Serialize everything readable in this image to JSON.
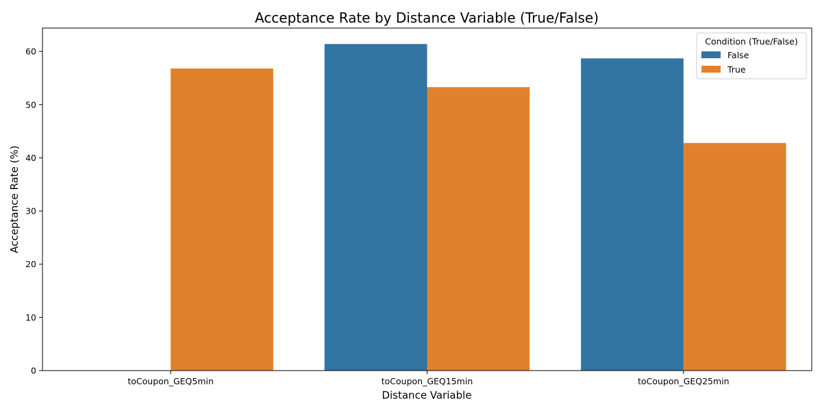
{
  "chart_data": {
    "type": "bar",
    "title": "Acceptance Rate by Distance Variable (True/False)",
    "xlabel": "Distance Variable",
    "ylabel": "Acceptance Rate (%)",
    "categories": [
      "toCoupon_GEQ5min",
      "toCoupon_GEQ15min",
      "toCoupon_GEQ25min"
    ],
    "series": [
      {
        "name": "False",
        "color": "#3274a1",
        "values": [
          null,
          61.4,
          58.7
        ]
      },
      {
        "name": "True",
        "color": "#e1812c",
        "values": [
          56.8,
          53.3,
          42.8
        ]
      }
    ],
    "ylim": [
      0,
      64.4
    ],
    "yticks": [
      0,
      10,
      20,
      30,
      40,
      50,
      60
    ],
    "grid": false,
    "legend": {
      "title": "Condition (True/False)",
      "placement": "top-right"
    }
  }
}
